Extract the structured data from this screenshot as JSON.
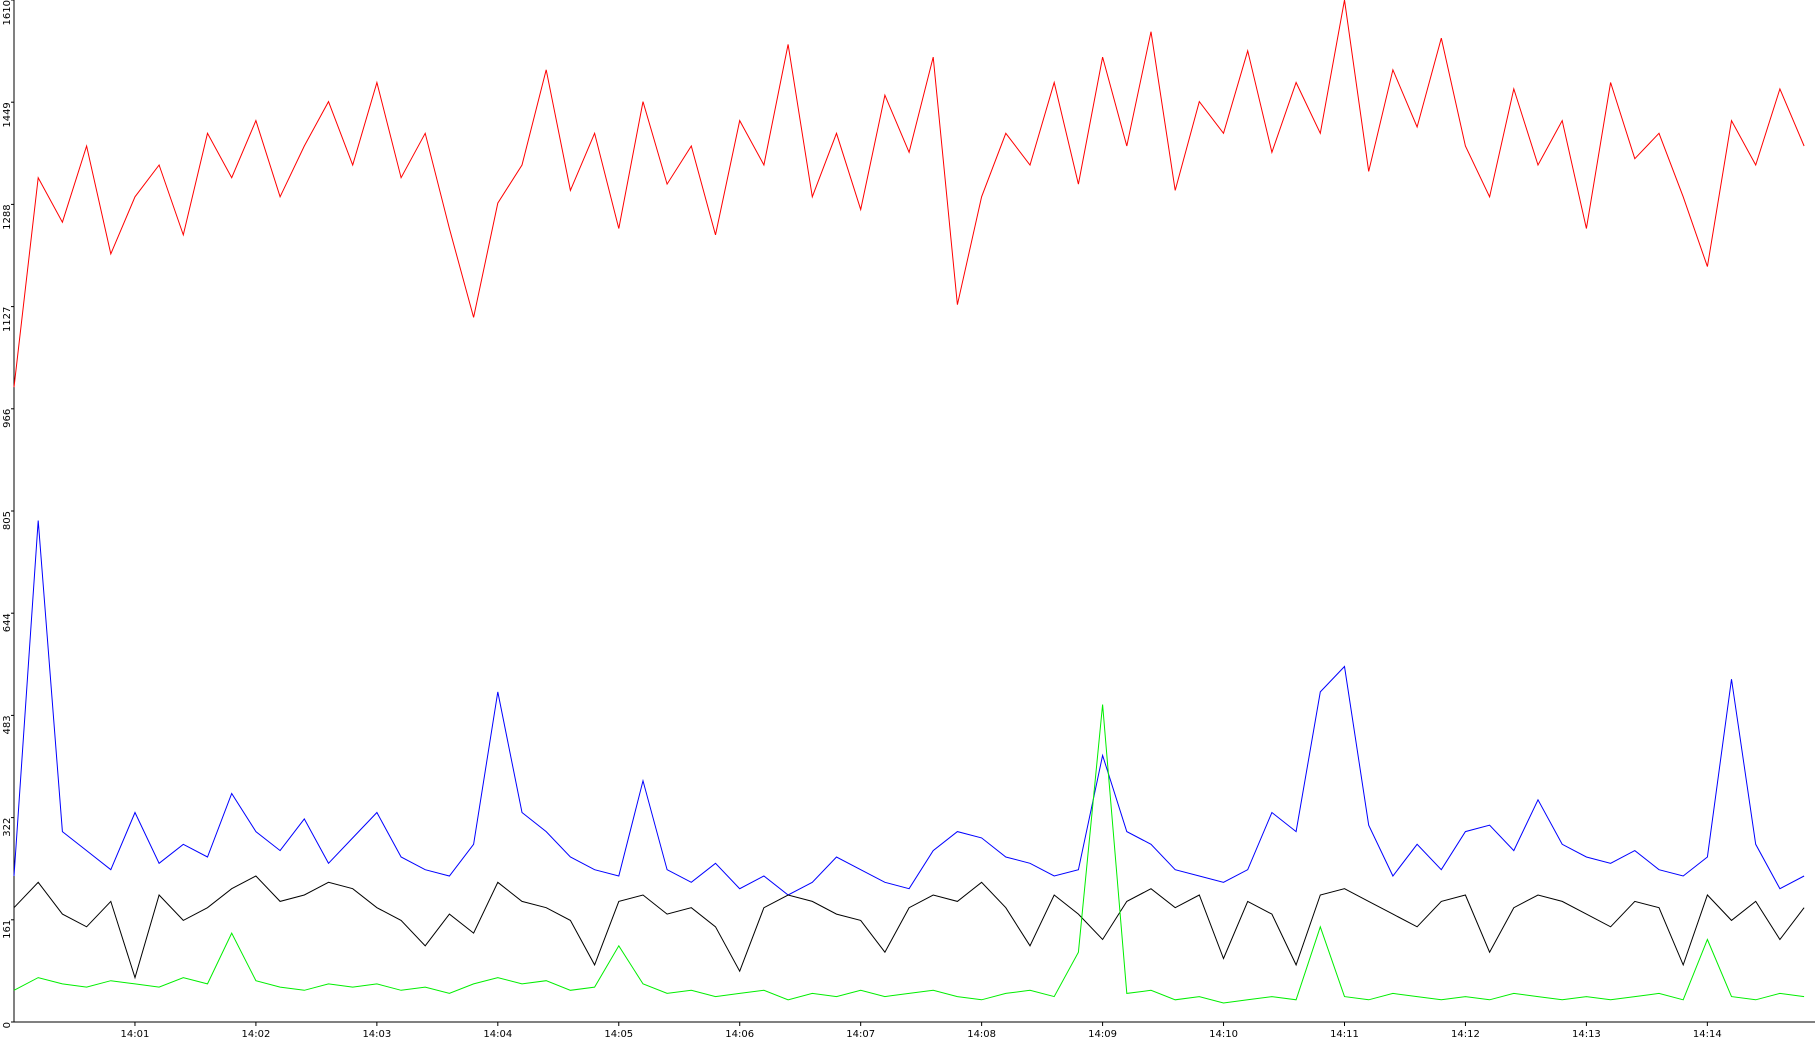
{
  "chart_data": {
    "type": "line",
    "x": [
      0,
      0.2,
      0.4,
      0.6,
      0.8,
      1,
      1.2,
      1.4,
      1.6,
      1.8,
      2,
      2.2,
      2.4,
      2.6,
      2.8,
      3,
      3.2,
      3.4,
      3.6,
      3.8,
      4,
      4.2,
      4.4,
      4.6,
      4.8,
      5,
      5.2,
      5.4,
      5.6,
      5.8,
      6,
      6.2,
      6.4,
      6.6,
      6.8,
      7,
      7.2,
      7.4,
      7.6,
      7.8,
      8,
      8.2,
      8.4,
      8.6,
      8.8,
      9,
      9.2,
      9.4,
      9.6,
      9.8,
      10,
      10.2,
      10.4,
      10.6,
      10.8,
      11,
      11.2,
      11.4,
      11.6,
      11.8,
      12,
      12.2,
      12.4,
      12.6,
      12.8,
      13,
      13.2,
      13.4,
      13.6,
      13.8,
      14,
      14.2,
      14.4,
      14.6,
      14.8
    ],
    "series": [
      {
        "color": "#ff0000",
        "values": [
          1000,
          1330,
          1260,
          1380,
          1210,
          1300,
          1350,
          1240,
          1400,
          1330,
          1420,
          1300,
          1380,
          1450,
          1350,
          1480,
          1330,
          1400,
          1250,
          1110,
          1290,
          1350,
          1500,
          1310,
          1400,
          1250,
          1450,
          1320,
          1380,
          1240,
          1420,
          1350,
          1540,
          1300,
          1400,
          1280,
          1460,
          1370,
          1520,
          1130,
          1300,
          1400,
          1350,
          1480,
          1320,
          1520,
          1380,
          1560,
          1310,
          1450,
          1400,
          1530,
          1370,
          1480,
          1400,
          1610,
          1340,
          1500,
          1410,
          1550,
          1380,
          1300,
          1470,
          1350,
          1420,
          1250,
          1480,
          1360,
          1400,
          1300,
          1190,
          1420,
          1350,
          1470,
          1380
        ]
      },
      {
        "color": "#0000ff",
        "values": [
          230,
          790,
          300,
          270,
          240,
          330,
          250,
          280,
          260,
          360,
          300,
          270,
          320,
          250,
          290,
          330,
          260,
          240,
          230,
          280,
          520,
          330,
          300,
          260,
          240,
          230,
          380,
          240,
          220,
          250,
          210,
          230,
          200,
          220,
          260,
          240,
          220,
          210,
          270,
          300,
          290,
          260,
          250,
          230,
          240,
          420,
          300,
          280,
          240,
          230,
          220,
          240,
          330,
          300,
          520,
          560,
          310,
          230,
          280,
          240,
          300,
          310,
          270,
          350,
          280,
          260,
          250,
          270,
          240,
          230,
          260,
          540,
          280,
          210,
          230
        ]
      },
      {
        "color": "#000000",
        "values": [
          180,
          220,
          170,
          150,
          190,
          70,
          200,
          160,
          180,
          210,
          230,
          190,
          200,
          220,
          210,
          180,
          160,
          120,
          170,
          140,
          220,
          190,
          180,
          160,
          90,
          190,
          200,
          170,
          180,
          150,
          80,
          180,
          200,
          190,
          170,
          160,
          110,
          180,
          200,
          190,
          220,
          180,
          120,
          200,
          170,
          130,
          190,
          210,
          180,
          200,
          100,
          190,
          170,
          90,
          200,
          210,
          190,
          170,
          150,
          190,
          200,
          110,
          180,
          200,
          190,
          170,
          150,
          190,
          180,
          90,
          200,
          160,
          190,
          130,
          180
        ]
      },
      {
        "color": "#00ee00",
        "values": [
          50,
          70,
          60,
          55,
          65,
          60,
          55,
          70,
          60,
          140,
          65,
          55,
          50,
          60,
          55,
          60,
          50,
          55,
          45,
          60,
          70,
          60,
          65,
          50,
          55,
          120,
          60,
          45,
          50,
          40,
          45,
          50,
          35,
          45,
          40,
          50,
          40,
          45,
          50,
          40,
          35,
          45,
          50,
          40,
          110,
          500,
          45,
          50,
          35,
          40,
          30,
          35,
          40,
          35,
          150,
          40,
          35,
          45,
          40,
          35,
          40,
          35,
          45,
          40,
          35,
          40,
          35,
          40,
          45,
          35,
          130,
          40,
          35,
          45,
          40
        ]
      }
    ],
    "xlim": [
      0,
      14.89
    ],
    "xticks": [
      {
        "value": 1,
        "label": "14:01"
      },
      {
        "value": 2,
        "label": "14:02"
      },
      {
        "value": 3,
        "label": "14:03"
      },
      {
        "value": 4,
        "label": "14:04"
      },
      {
        "value": 5,
        "label": "14:05"
      },
      {
        "value": 6,
        "label": "14:06"
      },
      {
        "value": 7,
        "label": "14:07"
      },
      {
        "value": 8,
        "label": "14:08"
      },
      {
        "value": 9,
        "label": "14:09"
      },
      {
        "value": 10,
        "label": "14:10"
      },
      {
        "value": 11,
        "label": "14:11"
      },
      {
        "value": 12,
        "label": "14:12"
      },
      {
        "value": 13,
        "label": "14:13"
      },
      {
        "value": 14,
        "label": "14:14"
      }
    ],
    "ylim": [
      0,
      1610
    ],
    "yticks": [
      0,
      161,
      322,
      483,
      644,
      805,
      966,
      1127,
      1288,
      1449,
      1610
    ]
  }
}
